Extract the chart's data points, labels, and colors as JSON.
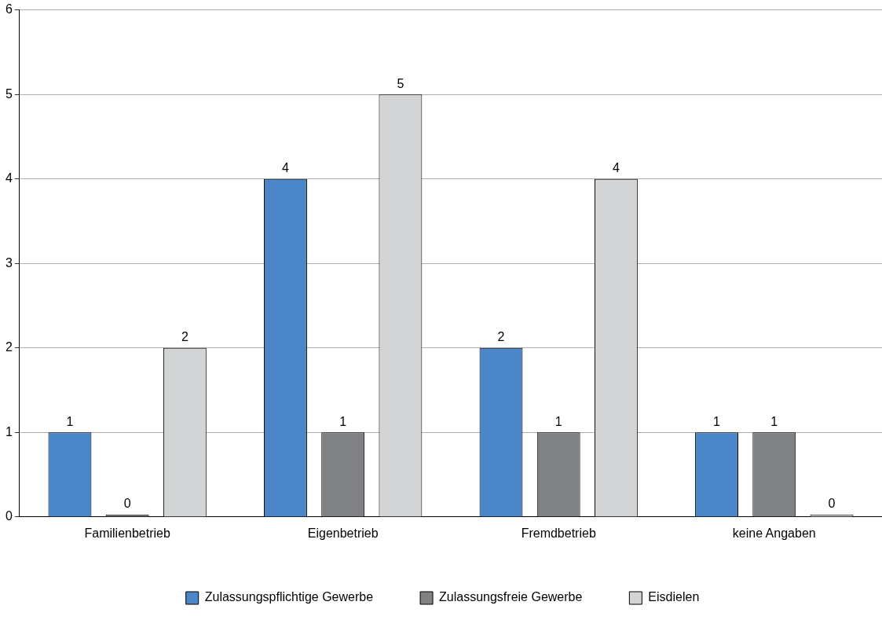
{
  "chart_data": {
    "type": "bar",
    "categories": [
      "Familienbetrieb",
      "Eigenbetrieb",
      "Fremdbetrieb",
      "keine Angaben"
    ],
    "series": [
      {
        "name": "Zulassungspflichtige Gewerbe",
        "color": "#4a86c8",
        "values": [
          1,
          4,
          2,
          1
        ]
      },
      {
        "name": "Zulassungsfreie Gewerbe",
        "color": "#808182",
        "values": [
          0,
          1,
          1,
          1
        ]
      },
      {
        "name": "Eisdielen",
        "color": "#d3d4d6",
        "values": [
          2,
          5,
          4,
          0
        ]
      }
    ],
    "ylim": [
      0,
      6
    ],
    "yticks": [
      0,
      1,
      2,
      3,
      4,
      5,
      6
    ],
    "grid": "y",
    "legend": "bottom",
    "data_labels": true
  }
}
